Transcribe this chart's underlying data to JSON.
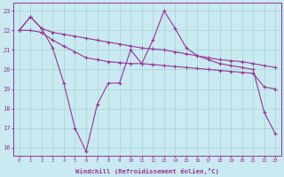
{
  "background_color": "#c8eaf0",
  "grid_color": "#a8d4d4",
  "line_color": "#993399",
  "x_min": -0.5,
  "x_max": 23.5,
  "y_min": 15.6,
  "y_max": 23.4,
  "y_ticks": [
    16,
    17,
    18,
    19,
    20,
    21,
    22,
    23
  ],
  "xlabel": "Windchill (Refroidissement éolien,°C)",
  "series1_x": [
    0,
    1,
    2,
    3,
    4,
    5,
    6,
    7,
    8,
    9,
    10,
    11,
    12,
    13,
    14,
    15,
    16,
    17,
    18,
    19,
    20,
    21,
    22,
    23
  ],
  "series1_y": [
    22.0,
    22.7,
    22.1,
    21.9,
    21.8,
    21.7,
    21.6,
    21.5,
    21.4,
    21.3,
    21.2,
    21.1,
    21.05,
    21.0,
    20.9,
    20.8,
    20.7,
    20.6,
    20.5,
    20.45,
    20.4,
    20.3,
    20.2,
    20.1
  ],
  "series2_x": [
    0,
    1,
    2,
    3,
    4,
    5,
    6,
    7,
    8,
    9,
    10,
    11,
    12,
    13,
    14,
    15,
    16,
    17,
    18,
    19,
    20,
    21,
    22,
    23
  ],
  "series2_y": [
    22.0,
    22.0,
    21.9,
    21.5,
    21.2,
    20.9,
    20.6,
    20.5,
    20.4,
    20.35,
    20.3,
    20.3,
    20.25,
    20.2,
    20.15,
    20.1,
    20.05,
    20.0,
    19.95,
    19.9,
    19.85,
    19.8,
    19.1,
    19.0
  ],
  "series3_x": [
    0,
    1,
    2,
    3,
    4,
    5,
    6,
    7,
    8,
    9,
    10,
    11,
    12,
    13,
    14,
    15,
    16,
    17,
    18,
    19,
    20,
    21,
    22,
    23
  ],
  "series3_y": [
    22.0,
    22.7,
    22.1,
    21.1,
    19.3,
    17.0,
    15.8,
    18.2,
    19.3,
    19.3,
    21.0,
    20.3,
    21.5,
    23.0,
    22.1,
    21.1,
    20.7,
    20.5,
    20.3,
    20.2,
    20.1,
    20.0,
    17.8,
    16.7
  ]
}
